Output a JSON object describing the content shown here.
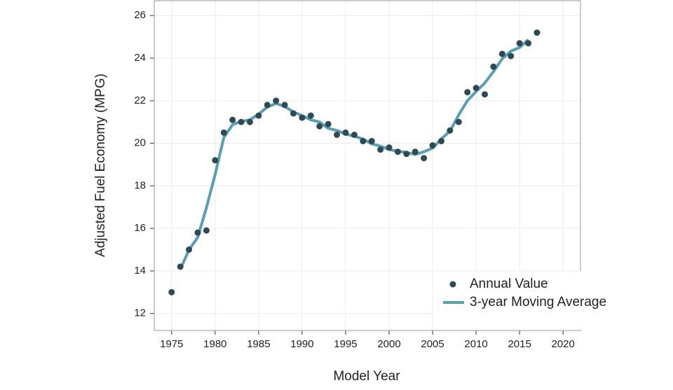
{
  "chart_data": {
    "type": "line",
    "x_label": "Model Year",
    "y_label": "Adjusted Fuel Economy (MPG)",
    "x": [
      1975,
      1976,
      1977,
      1978,
      1979,
      1980,
      1981,
      1982,
      1983,
      1984,
      1985,
      1986,
      1987,
      1988,
      1989,
      1990,
      1991,
      1992,
      1993,
      1994,
      1995,
      1996,
      1997,
      1998,
      1999,
      2000,
      2001,
      2002,
      2003,
      2004,
      2005,
      2006,
      2007,
      2008,
      2009,
      2010,
      2011,
      2012,
      2013,
      2014,
      2015,
      2016,
      2017
    ],
    "series": [
      {
        "name": "Annual Value",
        "style": "points",
        "color": "#2d4a55",
        "values": [
          13.0,
          14.2,
          15.0,
          15.8,
          15.9,
          19.2,
          20.5,
          21.1,
          21.0,
          21.0,
          21.3,
          21.8,
          22.0,
          21.8,
          21.4,
          21.2,
          21.3,
          20.8,
          20.9,
          20.4,
          20.5,
          20.4,
          20.1,
          20.1,
          19.7,
          19.8,
          19.6,
          19.5,
          19.6,
          19.3,
          19.9,
          20.1,
          20.6,
          21.0,
          22.4,
          22.6,
          22.3,
          23.6,
          24.2,
          24.1,
          24.7,
          24.7,
          25.2
        ]
      },
      {
        "name": "3-year Moving Average",
        "style": "line",
        "color": "#5b9db1",
        "values": [
          null,
          14.07,
          15.0,
          15.57,
          16.97,
          18.53,
          20.27,
          20.87,
          21.03,
          21.1,
          21.37,
          21.7,
          21.87,
          21.73,
          21.47,
          21.3,
          21.1,
          21.0,
          20.7,
          20.6,
          20.43,
          20.33,
          20.2,
          19.97,
          19.87,
          19.7,
          19.63,
          19.57,
          19.47,
          19.6,
          19.77,
          20.2,
          20.57,
          21.33,
          22.0,
          22.43,
          22.83,
          23.37,
          23.97,
          24.33,
          24.5,
          24.87,
          null
        ]
      }
    ],
    "xlim": [
      1973,
      2022
    ],
    "xticks": [
      1975,
      1980,
      1985,
      1990,
      1995,
      2000,
      2005,
      2010,
      2015,
      2020
    ],
    "ylim": [
      11.2,
      26.7
    ],
    "yticks": [
      12,
      14,
      16,
      18,
      20,
      22,
      24,
      26
    ],
    "grid": true,
    "legend": "lower right"
  }
}
